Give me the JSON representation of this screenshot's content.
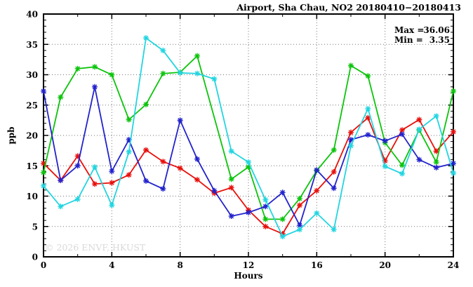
{
  "header": {
    "title": "Airport, Sha Chau, NO2 20180410−20180413"
  },
  "stats": {
    "max_label": "Max =",
    "max_value": "36.06",
    "min_label": "Min =",
    "min_value": "3.35"
  },
  "watermark": "© 2026 ENVF, HKUST",
  "chart_data": {
    "type": "line",
    "title": "Airport, Sha Chau, NO2 20180410−20180413",
    "xlabel": "Hours",
    "ylabel": "ppb",
    "xlim": [
      0,
      24
    ],
    "ylim": [
      0,
      40
    ],
    "grid": true,
    "legend": "none",
    "xticks_major": [
      0,
      4,
      8,
      12,
      16,
      20,
      24
    ],
    "xticks_minor": [
      2,
      6,
      10,
      14,
      18,
      22
    ],
    "yticks_major": [
      0,
      5,
      10,
      15,
      20,
      25,
      30,
      35,
      40
    ],
    "x": [
      0,
      1,
      2,
      3,
      4,
      5,
      6,
      7,
      8,
      9,
      10,
      11,
      12,
      13,
      14,
      15,
      16,
      17,
      18,
      19,
      20,
      21,
      22,
      23,
      24
    ],
    "series": [
      {
        "name": "red",
        "color": "#e8100c",
        "values": [
          15.4,
          12.6,
          16.6,
          12.0,
          12.2,
          13.5,
          17.6,
          15.7,
          14.6,
          12.7,
          10.5,
          11.4,
          7.7,
          5.0,
          3.8,
          8.5,
          10.9,
          14.0,
          20.5,
          22.9,
          15.8,
          20.9,
          22.6,
          17.4,
          20.6
        ]
      },
      {
        "name": "green",
        "color": "#0cc40c",
        "values": [
          13.9,
          26.3,
          31.0,
          31.3,
          30.0,
          22.6,
          25.1,
          30.2,
          30.4,
          33.1,
          null,
          12.8,
          14.8,
          6.2,
          6.2,
          9.6,
          14.2,
          17.6,
          31.5,
          29.8,
          18.8,
          15.1,
          20.9,
          15.6,
          27.3
        ]
      },
      {
        "name": "blue",
        "color": "#2222cd",
        "values": [
          27.3,
          12.6,
          15.0,
          28.0,
          14.1,
          19.3,
          12.5,
          11.2,
          22.5,
          16.1,
          10.9,
          6.7,
          7.3,
          8.3,
          10.6,
          5.2,
          14.3,
          11.3,
          19.3,
          20.1,
          19.1,
          20.2,
          16.0,
          14.7,
          15.4
        ]
      },
      {
        "name": "cyan",
        "color": "#22d5e0",
        "values": [
          11.7,
          8.3,
          9.5,
          14.8,
          8.5,
          17.3,
          36.06,
          34.0,
          30.3,
          30.2,
          29.3,
          17.4,
          15.6,
          9.4,
          3.35,
          4.5,
          7.2,
          4.5,
          18.3,
          24.4,
          14.9,
          13.7,
          21.0,
          23.2,
          13.8
        ]
      }
    ],
    "annotations": {
      "max": 36.06,
      "min": 3.35
    }
  }
}
